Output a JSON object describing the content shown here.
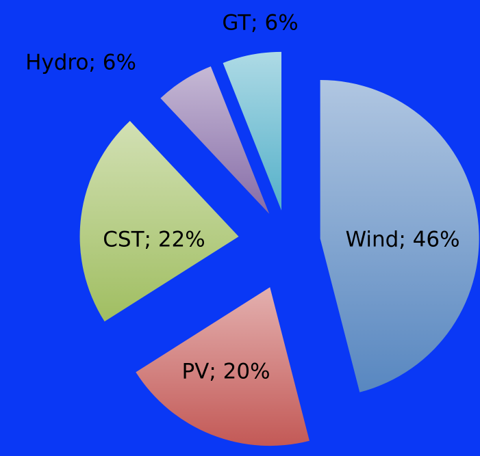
{
  "chart_data": {
    "type": "pie",
    "values": [
      46,
      20,
      22,
      6,
      6
    ],
    "value_labels": [
      "Wind; 46%",
      "PV; 20%",
      "CST; 22%",
      "Hydro; 6%",
      "GT; 6%"
    ],
    "colors": [
      "#4f81bd",
      "#c0504d",
      "#9bbb59",
      "#8064a2",
      "#4bacc6"
    ]
  }
}
